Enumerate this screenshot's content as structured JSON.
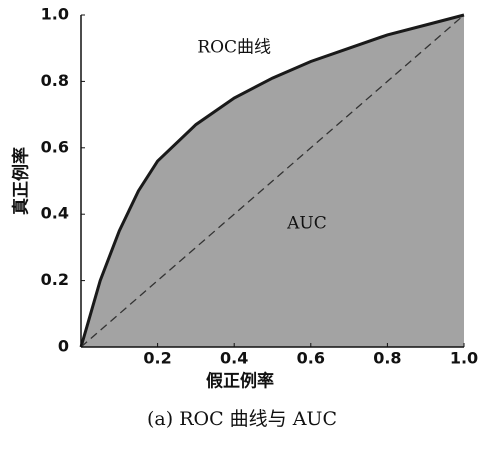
{
  "chart_data": {
    "type": "area",
    "x": [
      0,
      0.02,
      0.05,
      0.1,
      0.15,
      0.2,
      0.3,
      0.4,
      0.5,
      0.6,
      0.7,
      0.8,
      0.9,
      1
    ],
    "series": [
      {
        "values": [
          0,
          0.08,
          0.2,
          0.35,
          0.47,
          0.56,
          0.67,
          0.75,
          0.81,
          0.86,
          0.9,
          0.94,
          0.97,
          1
        ],
        "color": "#1a1a1a",
        "fill": "#a3a3a3"
      }
    ],
    "diagonal": {
      "x": [
        0,
        1
      ],
      "values": [
        0,
        1
      ],
      "color": "#333333"
    },
    "xlim": [
      0,
      1
    ],
    "ylim": [
      0,
      1
    ],
    "xticks": [
      0.2,
      0.4,
      0.6,
      0.8,
      {
        "value": 1,
        "label": "1.0"
      }
    ],
    "yticks": [
      0,
      0.2,
      0.4,
      0.6,
      0.8,
      {
        "value": 1,
        "label": "1.0"
      }
    ],
    "xlabel": "假正例率",
    "ylabel": "真正例率",
    "annotations": [
      {
        "text": "ROC曲线",
        "x": 0.4,
        "y": 0.9
      },
      {
        "text": "AUC",
        "x": 0.59,
        "y": 0.37
      }
    ],
    "caption": "(a) ROC 曲线与 AUC"
  }
}
